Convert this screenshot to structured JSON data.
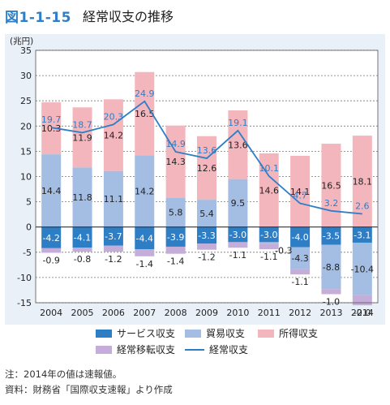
{
  "header": {
    "figure_number": "図1-1-15",
    "title": "経常収支の推移"
  },
  "chart_data": {
    "type": "bar",
    "stacked": true,
    "unit": "(兆円)",
    "ylim": [
      -15,
      35
    ],
    "yticks": [
      -15,
      -10,
      -5,
      0,
      5,
      10,
      15,
      20,
      25,
      30,
      35
    ],
    "grid": true,
    "legend_position": "bottom",
    "categories": [
      "2004",
      "2005",
      "2006",
      "2007",
      "2008",
      "2009",
      "2010",
      "2011",
      "2012",
      "2013",
      "2014"
    ],
    "series": [
      {
        "name": "サービス収支",
        "kind": "bar",
        "color": "#2e7ec6",
        "values": [
          -4.2,
          -4.1,
          -3.7,
          -4.4,
          -3.9,
          -3.3,
          -3.0,
          -3.0,
          -4.0,
          -3.5,
          -3.1
        ]
      },
      {
        "name": "貿易収支",
        "kind": "bar",
        "color": "#a3bde3",
        "values": [
          14.4,
          11.8,
          11.1,
          14.2,
          5.8,
          5.4,
          9.5,
          -0.3,
          -4.3,
          -8.8,
          -10.4
        ]
      },
      {
        "name": "所得収支",
        "kind": "bar",
        "color": "#f4b6bd",
        "values": [
          10.3,
          11.9,
          14.2,
          16.5,
          14.3,
          12.6,
          13.6,
          14.6,
          14.1,
          16.5,
          18.1
        ]
      },
      {
        "name": "経常移転収支",
        "kind": "bar",
        "color": "#c4aed9",
        "values": [
          -0.9,
          -0.8,
          -1.2,
          -1.4,
          -1.4,
          -1.2,
          -1.1,
          -1.1,
          -1.1,
          -1.0,
          -2.0
        ]
      },
      {
        "name": "経常収支",
        "kind": "line",
        "color": "#2e7ec6",
        "values": [
          19.7,
          18.7,
          20.3,
          24.9,
          14.9,
          13.6,
          19.1,
          10.1,
          4.7,
          3.2,
          2.6
        ]
      }
    ]
  },
  "legend": {
    "items": [
      {
        "label": "サービス収支",
        "color": "#2e7ec6",
        "kind": "box"
      },
      {
        "label": "貿易収支",
        "color": "#a3bde3",
        "kind": "box"
      },
      {
        "label": "所得収支",
        "color": "#f4b6bd",
        "kind": "box"
      },
      {
        "label": "経常移転収支",
        "color": "#c4aed9",
        "kind": "box"
      },
      {
        "label": "経常収支",
        "color": "#2e7ec6",
        "kind": "line"
      }
    ]
  },
  "notes": {
    "line1": "注：2014年の値は速報値。",
    "line2": "資料：財務省「国際収支速報」より作成"
  }
}
